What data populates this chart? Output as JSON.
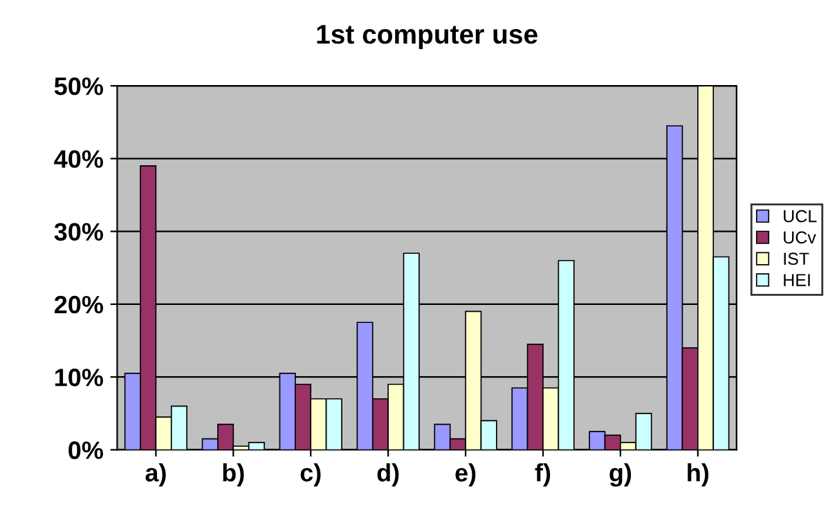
{
  "chart_data": {
    "type": "bar",
    "title": "1st computer use",
    "categories": [
      "a)",
      "b)",
      "c)",
      "d)",
      "e)",
      "f)",
      "g)",
      "h)"
    ],
    "series": [
      {
        "name": "UCL",
        "color": "#9999ff",
        "values": [
          10.5,
          1.5,
          10.5,
          17.5,
          3.5,
          8.5,
          2.5,
          44.5
        ]
      },
      {
        "name": "UCv",
        "color": "#993366",
        "values": [
          39,
          3.5,
          9,
          7,
          1.5,
          14.5,
          2,
          14
        ]
      },
      {
        "name": "IST",
        "color": "#ffffcc",
        "values": [
          4.5,
          0.5,
          7,
          9,
          19,
          8.5,
          1,
          50
        ]
      },
      {
        "name": "HEI",
        "color": "#ccffff",
        "values": [
          6,
          1,
          7,
          27,
          4,
          26,
          5,
          26.5
        ]
      }
    ],
    "ylim": [
      0,
      50
    ],
    "yticks": [
      {
        "value": 0,
        "label": "0%"
      },
      {
        "value": 10,
        "label": "10%"
      },
      {
        "value": 20,
        "label": "20%"
      },
      {
        "value": 30,
        "label": "30%"
      },
      {
        "value": 40,
        "label": "40%"
      },
      {
        "value": 50,
        "label": "50%"
      }
    ],
    "grid": "y",
    "legend": "right"
  }
}
